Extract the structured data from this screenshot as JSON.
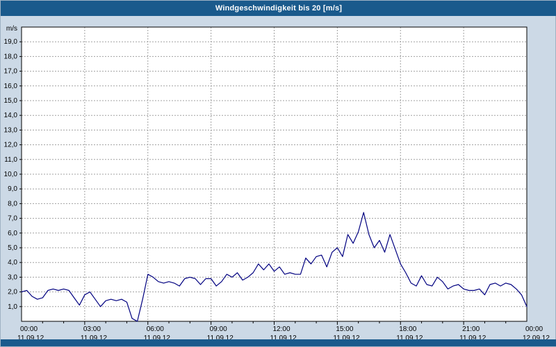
{
  "title_bar": {
    "text": "Windgeschwindigkeit bis 20 [m/s]",
    "bg_color": "#1a5a8c",
    "text_color": "#ffffff"
  },
  "page": {
    "background_color": "#ccd9e6"
  },
  "chart_data": {
    "type": "line",
    "title": "Windgeschwindigkeit bis 20 [m/s]",
    "unit_label": "m/s",
    "ylim": [
      0,
      20
    ],
    "grid": true,
    "legend": "none",
    "plot_bg_color": "#ffffff",
    "grid_color": "#a0a0a0",
    "line_color": "#000080",
    "y_ticks": {
      "values": [
        1,
        2,
        3,
        4,
        5,
        6,
        7,
        8,
        9,
        10,
        11,
        12,
        13,
        14,
        15,
        16,
        17,
        18,
        19
      ],
      "labels": [
        "1,0",
        "2,0",
        "3,0",
        "4,0",
        "5,0",
        "6,0",
        "7,0",
        "8,0",
        "9,0",
        "10,0",
        "11,0",
        "12,0",
        "13,0",
        "14,0",
        "15,0",
        "16,0",
        "17,0",
        "18,0",
        "19,0"
      ]
    },
    "x_ticks": {
      "hours": [
        0,
        3,
        6,
        9,
        12,
        15,
        18,
        21,
        24
      ],
      "times": [
        "00:00",
        "03:00",
        "06:00",
        "09:00",
        "12:00",
        "15:00",
        "18:00",
        "21:00",
        "00:00"
      ],
      "dates": [
        "11.09.12",
        "11.09.12",
        "11.09.12",
        "11.09.12",
        "11.09.12",
        "11.09.12",
        "11.09.12",
        "11.09.12",
        "12.09.12"
      ]
    },
    "series": [
      {
        "x_start_hour": 0,
        "x_step_hours": 0.25,
        "values": [
          2.0,
          2.1,
          1.7,
          1.5,
          1.6,
          2.1,
          2.2,
          2.1,
          2.2,
          2.1,
          1.6,
          1.1,
          1.8,
          2.0,
          1.5,
          1.0,
          1.4,
          1.5,
          1.4,
          1.5,
          1.3,
          0.2,
          0.0,
          1.5,
          3.2,
          3.0,
          2.7,
          2.6,
          2.7,
          2.6,
          2.4,
          2.9,
          3.0,
          2.9,
          2.5,
          2.9,
          2.9,
          2.4,
          2.7,
          3.2,
          3.0,
          3.3,
          2.8,
          3.0,
          3.3,
          3.9,
          3.5,
          3.9,
          3.4,
          3.7,
          3.2,
          3.3,
          3.2,
          3.2,
          4.3,
          3.9,
          4.4,
          4.5,
          3.7,
          4.7,
          5.0,
          4.4,
          5.9,
          5.3,
          6.1,
          7.4,
          5.9,
          5.0,
          5.5,
          4.7,
          5.9,
          4.9,
          3.9,
          3.3,
          2.6,
          2.4,
          3.1,
          2.5,
          2.4,
          3.0,
          2.7,
          2.2,
          2.4,
          2.5,
          2.2,
          2.1,
          2.1,
          2.2,
          1.8,
          2.5,
          2.6,
          2.4,
          2.6,
          2.5,
          2.2,
          1.8,
          1.0
        ]
      }
    ]
  }
}
